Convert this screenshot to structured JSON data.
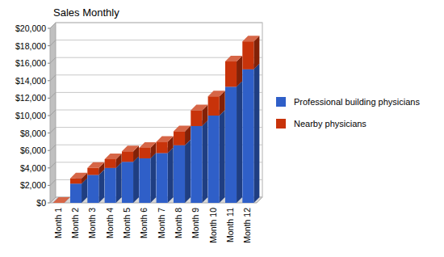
{
  "chart_data": {
    "type": "bar",
    "title": "Sales Monthly",
    "categories": [
      "Month 1",
      "Month 2",
      "Month 3",
      "Month 4",
      "Month 5",
      "Month 6",
      "Month 7",
      "Month 8",
      "Month 9",
      "Month 10",
      "Month 11",
      "Month 12"
    ],
    "series": [
      {
        "name": "Professional building physicians",
        "color": "#2f5fc8",
        "values": [
          0,
          2200,
          3200,
          4000,
          4700,
          5100,
          5700,
          6600,
          8800,
          10000,
          13300,
          15300
        ]
      },
      {
        "name": "Nearby physicians",
        "color": "#c8330a",
        "values": [
          0,
          600,
          800,
          1000,
          1200,
          1200,
          1300,
          1600,
          1800,
          2200,
          2900,
          3200
        ]
      }
    ],
    "ylim": [
      0,
      20000
    ],
    "yticks": [
      {
        "value": 0,
        "label": "$0"
      },
      {
        "value": 2000,
        "label": "$2,000"
      },
      {
        "value": 4000,
        "label": "$4,000"
      },
      {
        "value": 6000,
        "label": "$6,000"
      },
      {
        "value": 8000,
        "label": "$8,000"
      },
      {
        "value": 10000,
        "label": "$10,000"
      },
      {
        "value": 12000,
        "label": "$12,000"
      },
      {
        "value": 14000,
        "label": "$14,000"
      },
      {
        "value": 16000,
        "label": "$16,000"
      },
      {
        "value": 18000,
        "label": "$18,000"
      },
      {
        "value": 20000,
        "label": "$20,000"
      }
    ],
    "stacked": true,
    "grid": true,
    "legend": "right"
  }
}
